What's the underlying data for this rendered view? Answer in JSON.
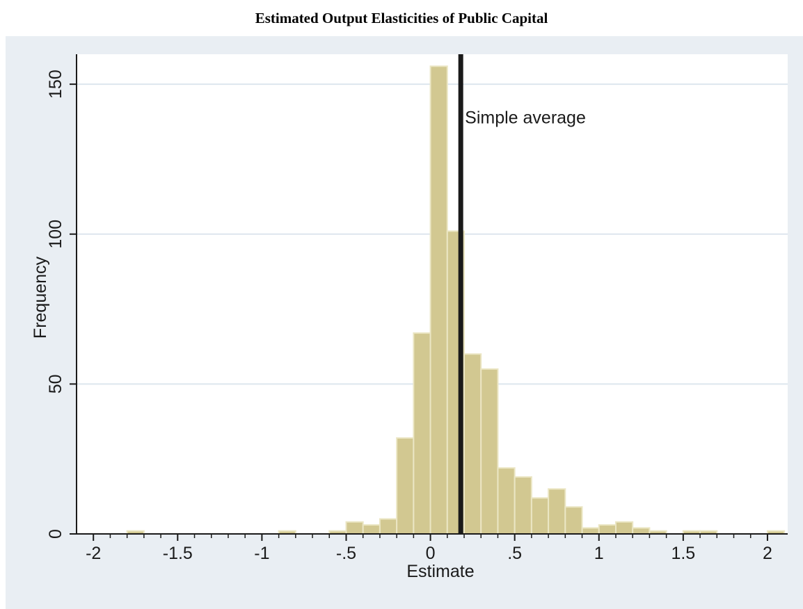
{
  "figure": {
    "title": "Estimated Output Elasticities of Public Capital"
  },
  "colors": {
    "outer_background": "#e9eef3",
    "plot_background": "#ffffff",
    "bar_fill": "#d2c891",
    "bar_stroke": "#ebe6c4",
    "gridline": "#dde6ee",
    "reference_line": "#1a1a1a"
  },
  "chart_data": {
    "type": "bar",
    "subtype": "histogram",
    "title": "Estimated Output Elasticities of Public Capital",
    "xlabel": "Estimate",
    "ylabel": "Frequency",
    "xlim": [
      -2.1,
      2.12
    ],
    "ylim": [
      0,
      160
    ],
    "bin_width": 0.1,
    "x_ticks": [
      -2,
      -1.5,
      -1,
      -0.5,
      0,
      0.5,
      1,
      1.5,
      2
    ],
    "x_tick_labels": [
      "-2",
      "-1.5",
      "-1",
      "-.5",
      "0",
      ".5",
      "1",
      "1.5",
      "2"
    ],
    "x_minor_ticks": [
      -1.9,
      -1.8,
      -1.7,
      -1.6,
      -1.4,
      -1.3,
      -1.2,
      -1.1,
      -0.9,
      -0.8,
      -0.7,
      -0.6,
      -0.4,
      -0.3,
      -0.2,
      -0.1,
      0.1,
      0.2,
      0.3,
      0.4,
      0.6,
      0.7,
      0.8,
      0.9,
      1.1,
      1.2,
      1.3,
      1.4,
      1.6,
      1.7,
      1.8,
      1.9
    ],
    "y_ticks": [
      0,
      50,
      100,
      150
    ],
    "y_tick_labels": [
      "0",
      "50",
      "100",
      "150"
    ],
    "grid": true,
    "bins": [
      {
        "start": -1.8,
        "count": 1
      },
      {
        "start": -0.9,
        "count": 1
      },
      {
        "start": -0.6,
        "count": 1
      },
      {
        "start": -0.5,
        "count": 4
      },
      {
        "start": -0.4,
        "count": 3
      },
      {
        "start": -0.3,
        "count": 5
      },
      {
        "start": -0.2,
        "count": 32
      },
      {
        "start": -0.1,
        "count": 67
      },
      {
        "start": 0.0,
        "count": 156
      },
      {
        "start": 0.1,
        "count": 101
      },
      {
        "start": 0.2,
        "count": 60
      },
      {
        "start": 0.3,
        "count": 55
      },
      {
        "start": 0.4,
        "count": 22
      },
      {
        "start": 0.5,
        "count": 19
      },
      {
        "start": 0.6,
        "count": 12
      },
      {
        "start": 0.7,
        "count": 15
      },
      {
        "start": 0.8,
        "count": 9
      },
      {
        "start": 0.9,
        "count": 2
      },
      {
        "start": 1.0,
        "count": 3
      },
      {
        "start": 1.1,
        "count": 4
      },
      {
        "start": 1.2,
        "count": 2
      },
      {
        "start": 1.3,
        "count": 1
      },
      {
        "start": 1.5,
        "count": 1
      },
      {
        "start": 1.6,
        "count": 1
      },
      {
        "start": 2.0,
        "count": 1
      }
    ],
    "reference_line": {
      "x": 0.18,
      "label": "Simple average"
    }
  }
}
